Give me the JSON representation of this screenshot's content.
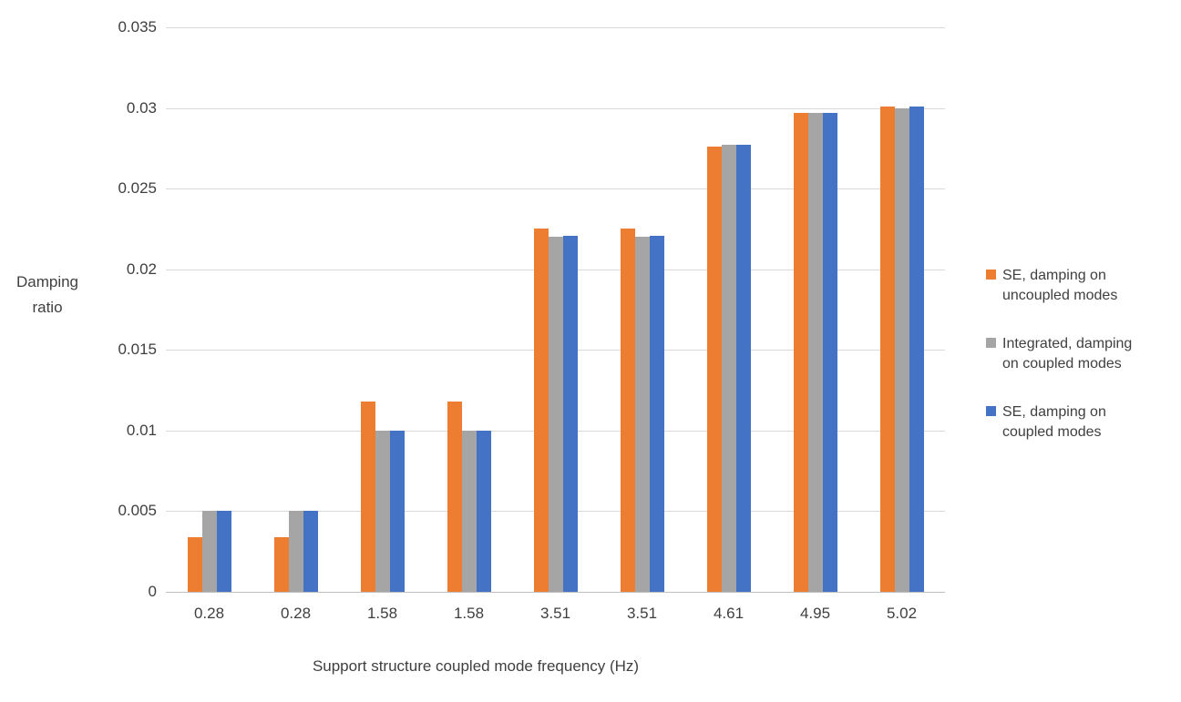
{
  "chart_data": {
    "type": "bar",
    "title": "",
    "xlabel": "Support structure coupled mode frequency (Hz)",
    "ylabel": "Damping ratio",
    "ylim": [
      0,
      0.035
    ],
    "yticks": [
      0,
      0.005,
      0.01,
      0.015,
      0.02,
      0.025,
      0.03,
      0.035
    ],
    "ytick_labels": [
      "0",
      "0.005",
      "0.01",
      "0.015",
      "0.02",
      "0.025",
      "0.03",
      "0.035"
    ],
    "grid": true,
    "legend_position": "right",
    "categories": [
      "0.28",
      "0.28",
      "1.58",
      "1.58",
      "3.51",
      "3.51",
      "4.61",
      "4.95",
      "5.02"
    ],
    "series": [
      {
        "name": "SE, damping on uncoupled modes",
        "color": "#ED7D31",
        "values": [
          0.0034,
          0.0034,
          0.0118,
          0.0118,
          0.0225,
          0.0225,
          0.0276,
          0.0297,
          0.0301
        ]
      },
      {
        "name": "Integrated, damping on coupled modes",
        "color": "#A5A5A5",
        "values": [
          0.005,
          0.005,
          0.01,
          0.01,
          0.022,
          0.022,
          0.0277,
          0.0297,
          0.03
        ]
      },
      {
        "name": "SE, damping on coupled modes",
        "color": "#4472C4",
        "values": [
          0.005,
          0.005,
          0.01,
          0.01,
          0.0221,
          0.0221,
          0.0277,
          0.0297,
          0.0301
        ]
      }
    ]
  }
}
